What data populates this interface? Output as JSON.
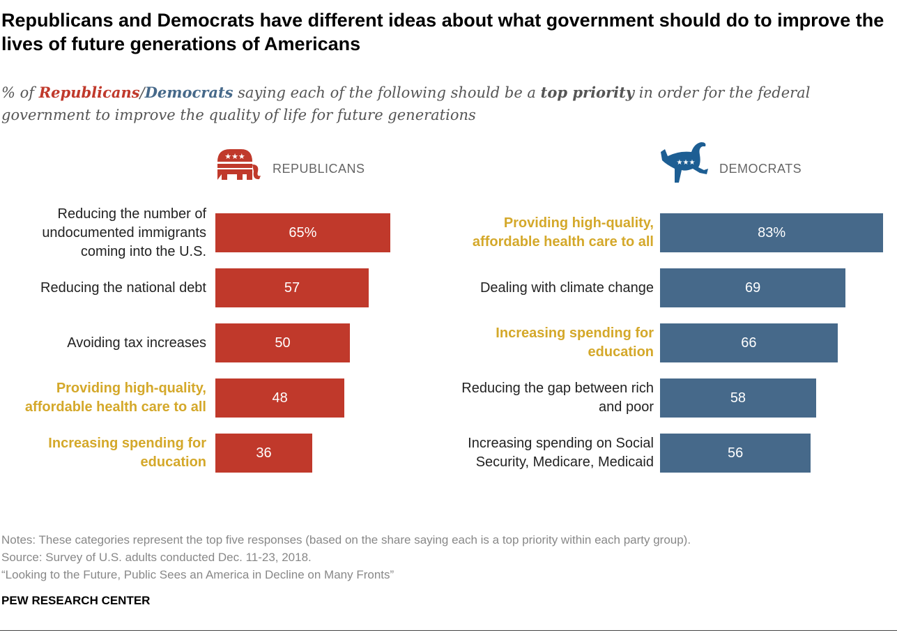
{
  "title": "Republicans and Democrats have different ideas about what government should do to improve the lives of future generations of Americans",
  "subtitle": {
    "pre": "% of ",
    "rep": "Republicans",
    "slash": "/",
    "dem": "Democrats",
    "mid": " saying each of the following should be a ",
    "bold": "top priority",
    "post": " in order for the federal government to improve the quality of life for future generations"
  },
  "colors": {
    "republican": "#c0392b",
    "democrat": "#46698a",
    "highlight": "#d4a82a"
  },
  "chart_data": [
    {
      "type": "bar",
      "orientation": "horizontal",
      "group": "REPUBLICANS",
      "logo": "elephant-icon",
      "xlim": [
        0,
        100
      ],
      "categories": [
        "Reducing the number of undocumented immigrants coming into the U.S.",
        "Reducing the national debt",
        "Avoiding tax increases",
        "Providing high-quality, affordable health care to all",
        "Increasing spending for education"
      ],
      "highlighted": [
        false,
        false,
        false,
        true,
        true
      ],
      "values": [
        65,
        57,
        50,
        48,
        36
      ],
      "data_labels": [
        "65%",
        "57",
        "50",
        "48",
        "36"
      ]
    },
    {
      "type": "bar",
      "orientation": "horizontal",
      "group": "DEMOCRATS",
      "logo": "donkey-icon",
      "xlim": [
        0,
        100
      ],
      "categories": [
        "Providing high-quality, affordable health care to all",
        "Dealing with climate change",
        "Increasing spending for education",
        "Reducing the gap between rich and poor",
        "Increasing spending on Social Security, Medicare, Medicaid"
      ],
      "highlighted": [
        true,
        false,
        true,
        false,
        false
      ],
      "values": [
        83,
        69,
        66,
        58,
        56
      ],
      "data_labels": [
        "83%",
        "69",
        "66",
        "58",
        "56"
      ]
    }
  ],
  "notes": [
    "Notes: These categories represent the top five responses (based on the share saying each is a top priority within each party group).",
    "Source: Survey of U.S. adults conducted Dec. 11-23, 2018.",
    "“Looking to the Future, Public Sees an America in Decline on Many Fronts”"
  ],
  "source": "PEW RESEARCH CENTER"
}
